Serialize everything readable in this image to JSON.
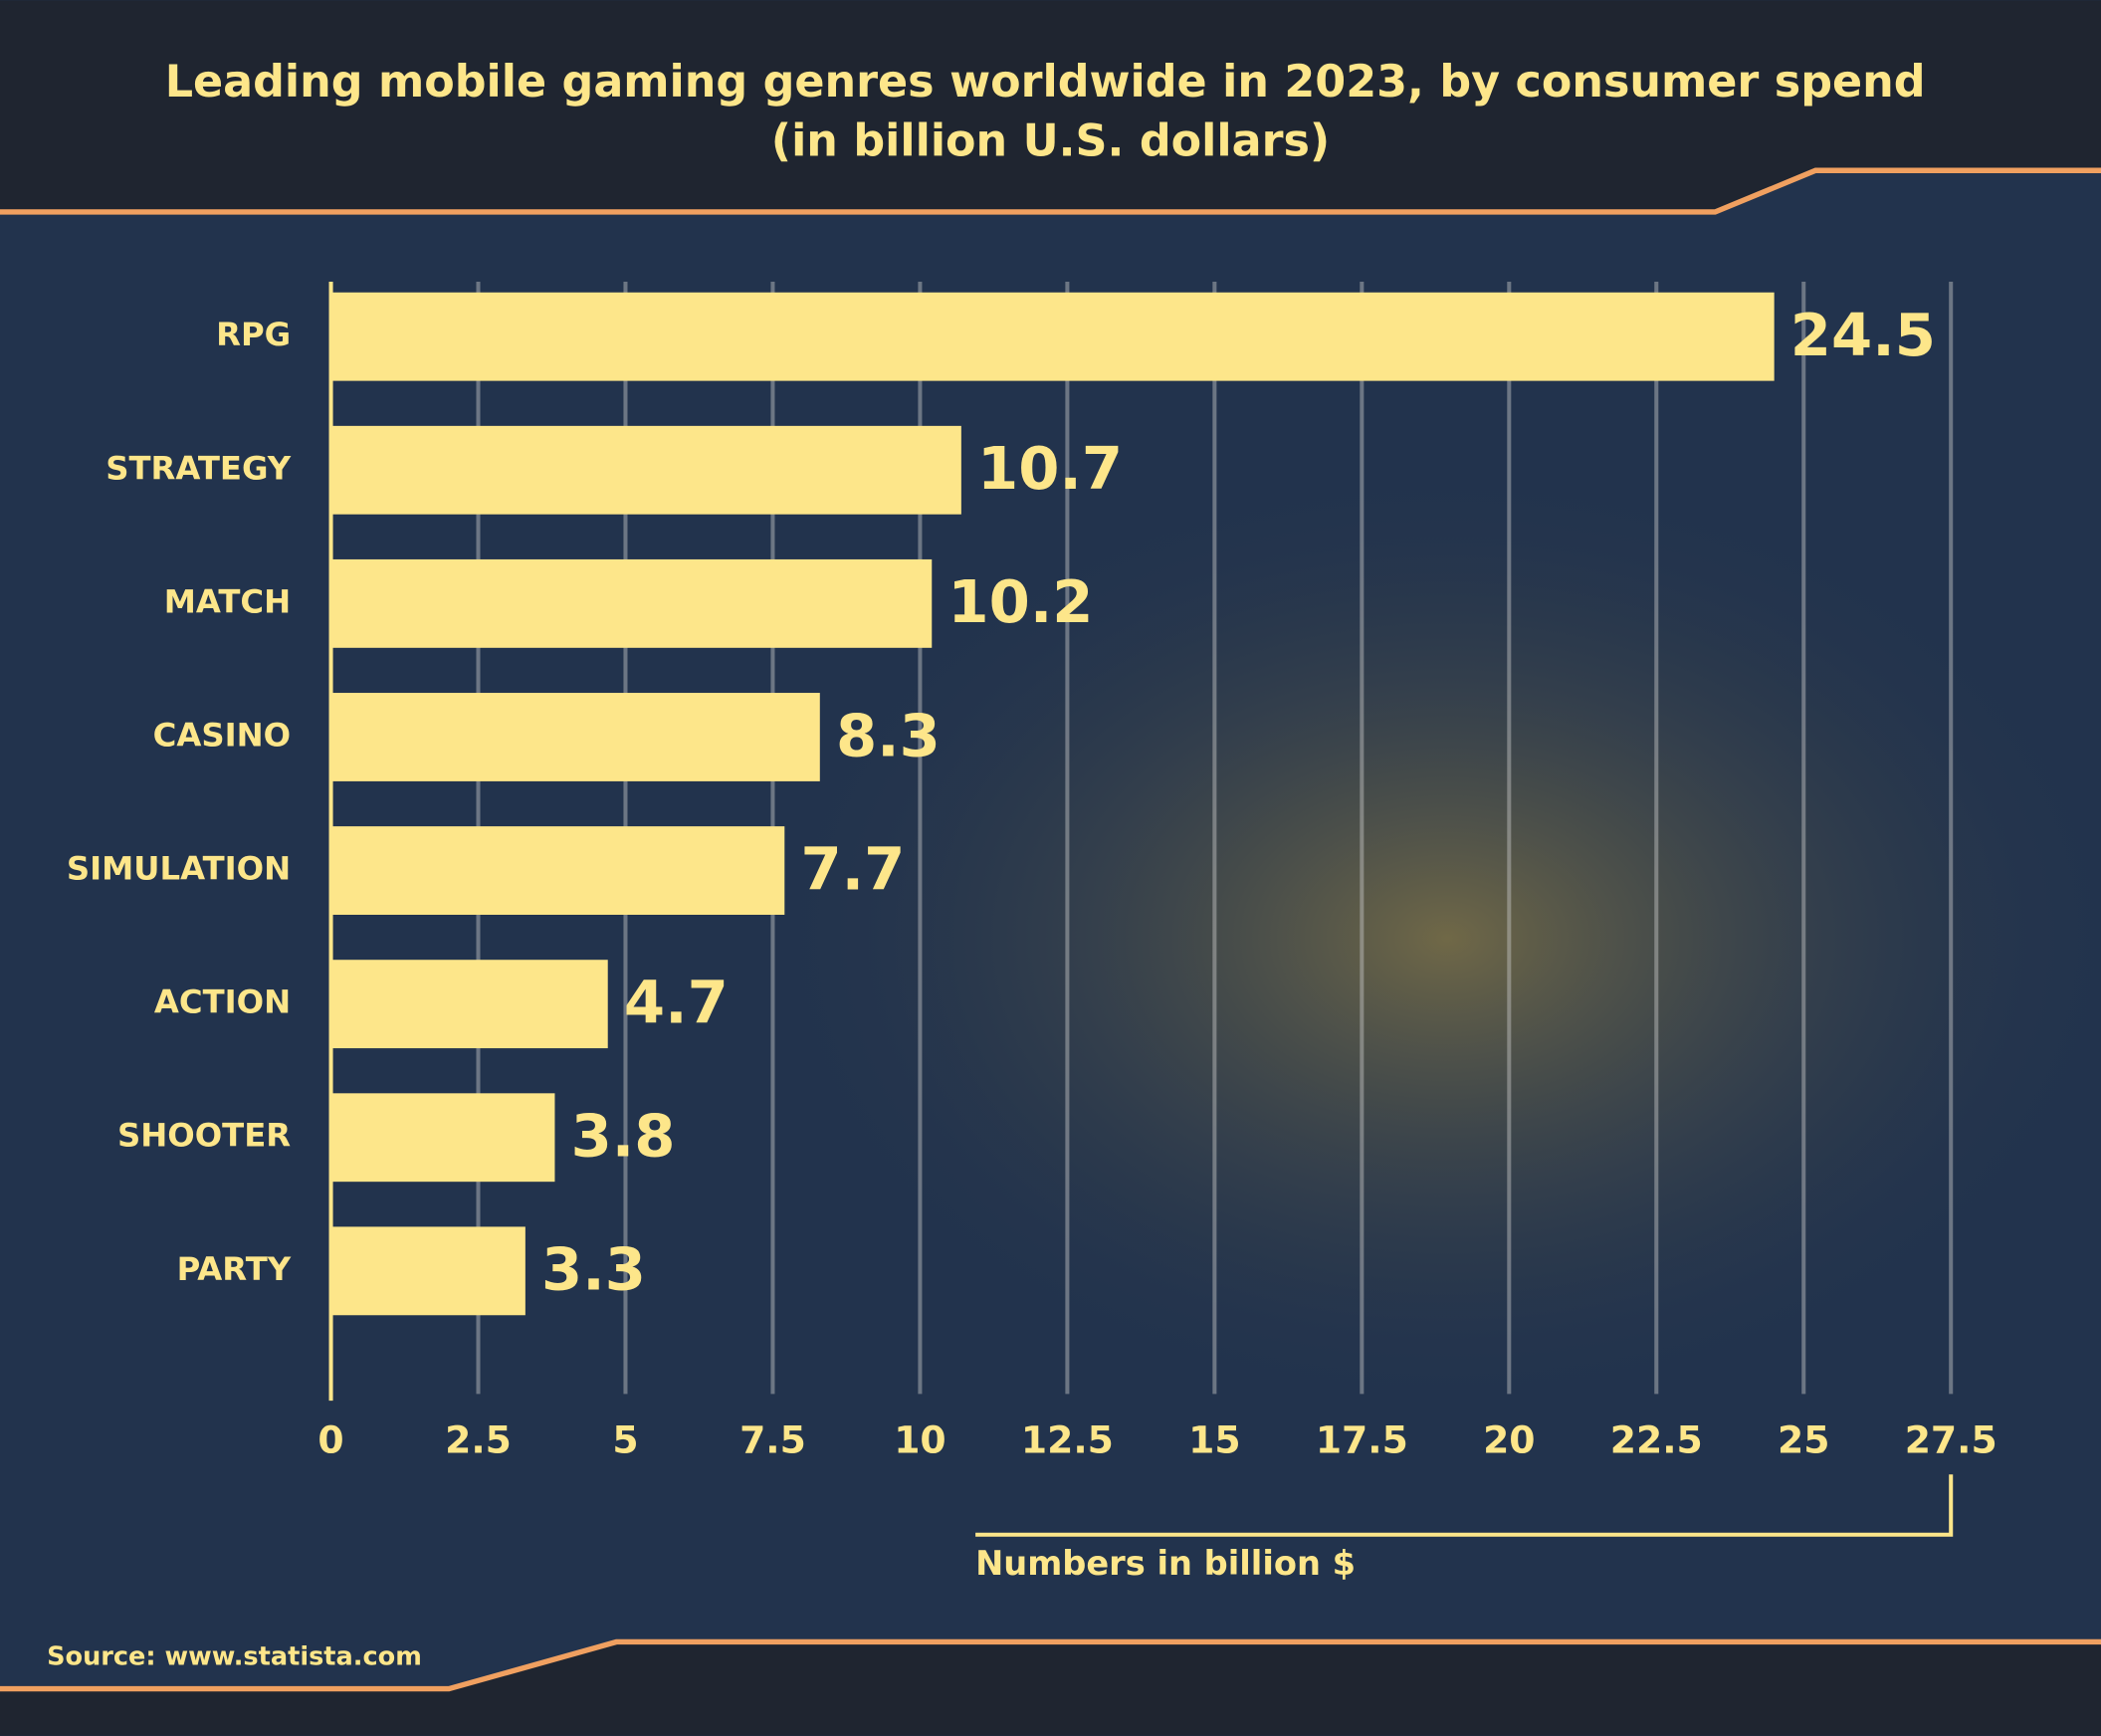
{
  "chart_data": {
    "type": "bar",
    "orientation": "horizontal",
    "title": "Leading mobile gaming genres worldwide in 2023, by consumer spend",
    "subtitle": "(in billion U.S. dollars)",
    "categories": [
      "RPG",
      "STRATEGY",
      "MATCH",
      "CASINO",
      "SIMULATION",
      "ACTION",
      "SHOOTER",
      "PARTY"
    ],
    "values": [
      24.5,
      10.7,
      10.2,
      8.3,
      7.7,
      4.7,
      3.8,
      3.3
    ],
    "color": "#fde68a",
    "xlim": [
      0,
      27.5
    ],
    "xticks": [
      0,
      2.5,
      5,
      7.5,
      10,
      12.5,
      15,
      17.5,
      20,
      22.5,
      25,
      27.5
    ],
    "grid": true,
    "xlabel": "Numbers in billion $",
    "source": "Source: www.statista.com"
  }
}
